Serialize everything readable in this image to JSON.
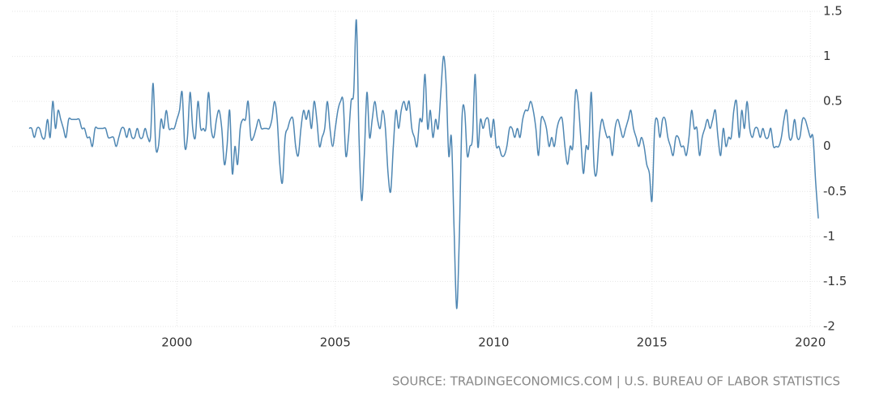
{
  "chart_data": {
    "type": "line",
    "source": "SOURCE: TRADINGECONOMICS.COM | U.S. BUREAU OF LABOR STATISTICS",
    "xlim": [
      1994.8,
      2020.3
    ],
    "xticks": [
      2000,
      2005,
      2010,
      2015,
      2020
    ],
    "ylim": [
      -2,
      1.5
    ],
    "yticks": [
      1.5,
      1,
      0.5,
      0,
      -0.5,
      -1,
      -1.5,
      -2
    ],
    "grid": true,
    "x": [
      1995.333,
      1995.417,
      1995.5,
      1995.583,
      1995.667,
      1995.75,
      1995.833,
      1995.917,
      1996,
      1996.083,
      1996.167,
      1996.25,
      1996.333,
      1996.417,
      1996.5,
      1996.583,
      1996.667,
      1996.75,
      1996.833,
      1996.917,
      1997,
      1997.083,
      1997.167,
      1997.25,
      1997.333,
      1997.417,
      1997.5,
      1997.583,
      1997.667,
      1997.75,
      1997.833,
      1997.917,
      1998,
      1998.083,
      1998.167,
      1998.25,
      1998.333,
      1998.417,
      1998.5,
      1998.583,
      1998.667,
      1998.75,
      1998.833,
      1998.917,
      1999,
      1999.083,
      1999.167,
      1999.25,
      1999.333,
      1999.417,
      1999.5,
      1999.583,
      1999.667,
      1999.75,
      1999.833,
      1999.917,
      2000,
      2000.083,
      2000.167,
      2000.25,
      2000.333,
      2000.417,
      2000.5,
      2000.583,
      2000.667,
      2000.75,
      2000.833,
      2000.917,
      2001,
      2001.083,
      2001.167,
      2001.25,
      2001.333,
      2001.417,
      2001.5,
      2001.583,
      2001.667,
      2001.75,
      2001.833,
      2001.917,
      2002,
      2002.083,
      2002.167,
      2002.25,
      2002.333,
      2002.417,
      2002.5,
      2002.583,
      2002.667,
      2002.75,
      2002.833,
      2002.917,
      2003,
      2003.083,
      2003.167,
      2003.25,
      2003.333,
      2003.417,
      2003.5,
      2003.583,
      2003.667,
      2003.75,
      2003.833,
      2003.917,
      2004,
      2004.083,
      2004.167,
      2004.25,
      2004.333,
      2004.417,
      2004.5,
      2004.583,
      2004.667,
      2004.75,
      2004.833,
      2004.917,
      2005,
      2005.083,
      2005.167,
      2005.25,
      2005.333,
      2005.417,
      2005.5,
      2005.583,
      2005.667,
      2005.75,
      2005.833,
      2005.917,
      2006,
      2006.083,
      2006.167,
      2006.25,
      2006.333,
      2006.417,
      2006.5,
      2006.583,
      2006.667,
      2006.75,
      2006.833,
      2006.917,
      2007,
      2007.083,
      2007.167,
      2007.25,
      2007.333,
      2007.417,
      2007.5,
      2007.583,
      2007.667,
      2007.75,
      2007.833,
      2007.917,
      2008,
      2008.083,
      2008.167,
      2008.25,
      2008.333,
      2008.417,
      2008.5,
      2008.583,
      2008.667,
      2008.75,
      2008.833,
      2008.917,
      2009,
      2009.083,
      2009.167,
      2009.25,
      2009.333,
      2009.417,
      2009.5,
      2009.583,
      2009.667,
      2009.75,
      2009.833,
      2009.917,
      2010,
      2010.083,
      2010.167,
      2010.25,
      2010.333,
      2010.417,
      2010.5,
      2010.583,
      2010.667,
      2010.75,
      2010.833,
      2010.917,
      2011,
      2011.083,
      2011.167,
      2011.25,
      2011.333,
      2011.417,
      2011.5,
      2011.583,
      2011.667,
      2011.75,
      2011.833,
      2011.917,
      2012,
      2012.083,
      2012.167,
      2012.25,
      2012.333,
      2012.417,
      2012.5,
      2012.583,
      2012.667,
      2012.75,
      2012.833,
      2012.917,
      2013,
      2013.083,
      2013.167,
      2013.25,
      2013.333,
      2013.417,
      2013.5,
      2013.583,
      2013.667,
      2013.75,
      2013.833,
      2013.917,
      2014,
      2014.083,
      2014.167,
      2014.25,
      2014.333,
      2014.417,
      2014.5,
      2014.583,
      2014.667,
      2014.75,
      2014.833,
      2014.917,
      2015,
      2015.083,
      2015.167,
      2015.25,
      2015.333,
      2015.417,
      2015.5,
      2015.583,
      2015.667,
      2015.75,
      2015.833,
      2015.917,
      2016,
      2016.083,
      2016.167,
      2016.25,
      2016.333,
      2016.417,
      2016.5,
      2016.583,
      2016.667,
      2016.75,
      2016.833,
      2016.917,
      2017,
      2017.083,
      2017.167,
      2017.25,
      2017.333,
      2017.417,
      2017.5,
      2017.583,
      2017.667,
      2017.75,
      2017.833,
      2017.917,
      2018,
      2018.083,
      2018.167,
      2018.25,
      2018.333,
      2018.417,
      2018.5,
      2018.583,
      2018.667,
      2018.75,
      2018.833,
      2018.917,
      2019,
      2019.083,
      2019.167,
      2019.25,
      2019.333,
      2019.417,
      2019.5,
      2019.583,
      2019.667,
      2019.75,
      2019.833,
      2019.917,
      2020,
      2020.083,
      2020.167,
      2020.25
    ],
    "series": [
      {
        "color": "#4f87b3",
        "values": [
          0.2,
          0.2,
          0.1,
          0.2,
          0.2,
          0.1,
          0.1,
          0.3,
          0.1,
          0.5,
          0.2,
          0.4,
          0.3,
          0.2,
          0.1,
          0.3,
          0.3,
          0.3,
          0.3,
          0.3,
          0.2,
          0.2,
          0.1,
          0.1,
          0.0,
          0.2,
          0.2,
          0.2,
          0.2,
          0.2,
          0.1,
          0.1,
          0.1,
          0.0,
          0.1,
          0.2,
          0.2,
          0.1,
          0.2,
          0.1,
          0.1,
          0.2,
          0.1,
          0.1,
          0.2,
          0.1,
          0.1,
          0.7,
          0.0,
          0.0,
          0.3,
          0.2,
          0.4,
          0.2,
          0.2,
          0.2,
          0.3,
          0.4,
          0.6,
          0.0,
          0.1,
          0.6,
          0.2,
          0.1,
          0.5,
          0.2,
          0.2,
          0.2,
          0.6,
          0.2,
          0.1,
          0.3,
          0.4,
          0.2,
          -0.2,
          0.0,
          0.4,
          -0.3,
          0.0,
          -0.2,
          0.2,
          0.3,
          0.3,
          0.5,
          0.1,
          0.1,
          0.2,
          0.3,
          0.2,
          0.2,
          0.2,
          0.2,
          0.3,
          0.5,
          0.3,
          -0.2,
          -0.4,
          0.1,
          0.2,
          0.3,
          0.3,
          0.0,
          -0.1,
          0.2,
          0.4,
          0.3,
          0.4,
          0.2,
          0.5,
          0.3,
          0.0,
          0.1,
          0.2,
          0.5,
          0.2,
          0.0,
          0.2,
          0.4,
          0.5,
          0.5,
          -0.1,
          0.1,
          0.5,
          0.6,
          1.4,
          0.1,
          -0.6,
          -0.1,
          0.6,
          0.1,
          0.3,
          0.5,
          0.3,
          0.2,
          0.4,
          0.2,
          -0.3,
          -0.5,
          0.0,
          0.4,
          0.2,
          0.4,
          0.5,
          0.4,
          0.5,
          0.2,
          0.1,
          0.0,
          0.3,
          0.3,
          0.8,
          0.2,
          0.4,
          0.1,
          0.3,
          0.2,
          0.6,
          1.0,
          0.7,
          -0.1,
          0.1,
          -0.9,
          -1.8,
          -1.0,
          0.3,
          0.4,
          -0.1,
          0.0,
          0.1,
          0.8,
          0.0,
          0.3,
          0.2,
          0.3,
          0.3,
          0.1,
          0.3,
          0.0,
          0.0,
          -0.1,
          -0.1,
          0.0,
          0.2,
          0.2,
          0.1,
          0.2,
          0.1,
          0.3,
          0.4,
          0.4,
          0.5,
          0.4,
          0.2,
          -0.1,
          0.3,
          0.3,
          0.2,
          0.0,
          0.1,
          0.0,
          0.2,
          0.3,
          0.3,
          0.0,
          -0.2,
          0.0,
          0.0,
          0.6,
          0.5,
          0.1,
          -0.3,
          0.0,
          0.0,
          0.6,
          -0.2,
          -0.3,
          0.1,
          0.3,
          0.2,
          0.1,
          0.1,
          -0.1,
          0.2,
          0.3,
          0.2,
          0.1,
          0.2,
          0.3,
          0.4,
          0.2,
          0.1,
          0.0,
          0.1,
          0.0,
          -0.2,
          -0.3,
          -0.6,
          0.2,
          0.3,
          0.1,
          0.3,
          0.3,
          0.1,
          0.0,
          -0.1,
          0.1,
          0.1,
          0.0,
          0.0,
          -0.1,
          0.1,
          0.4,
          0.2,
          0.2,
          -0.1,
          0.1,
          0.2,
          0.3,
          0.2,
          0.3,
          0.4,
          0.1,
          -0.1,
          0.2,
          0.0,
          0.1,
          0.1,
          0.4,
          0.5,
          0.1,
          0.4,
          0.2,
          0.5,
          0.2,
          0.1,
          0.2,
          0.2,
          0.1,
          0.2,
          0.1,
          0.1,
          0.2,
          0.0,
          0.0,
          0.0,
          0.1,
          0.3,
          0.4,
          0.1,
          0.1,
          0.3,
          0.1,
          0.1,
          0.3,
          0.3,
          0.2,
          0.1,
          0.1,
          -0.4,
          -0.8
        ]
      }
    ]
  }
}
